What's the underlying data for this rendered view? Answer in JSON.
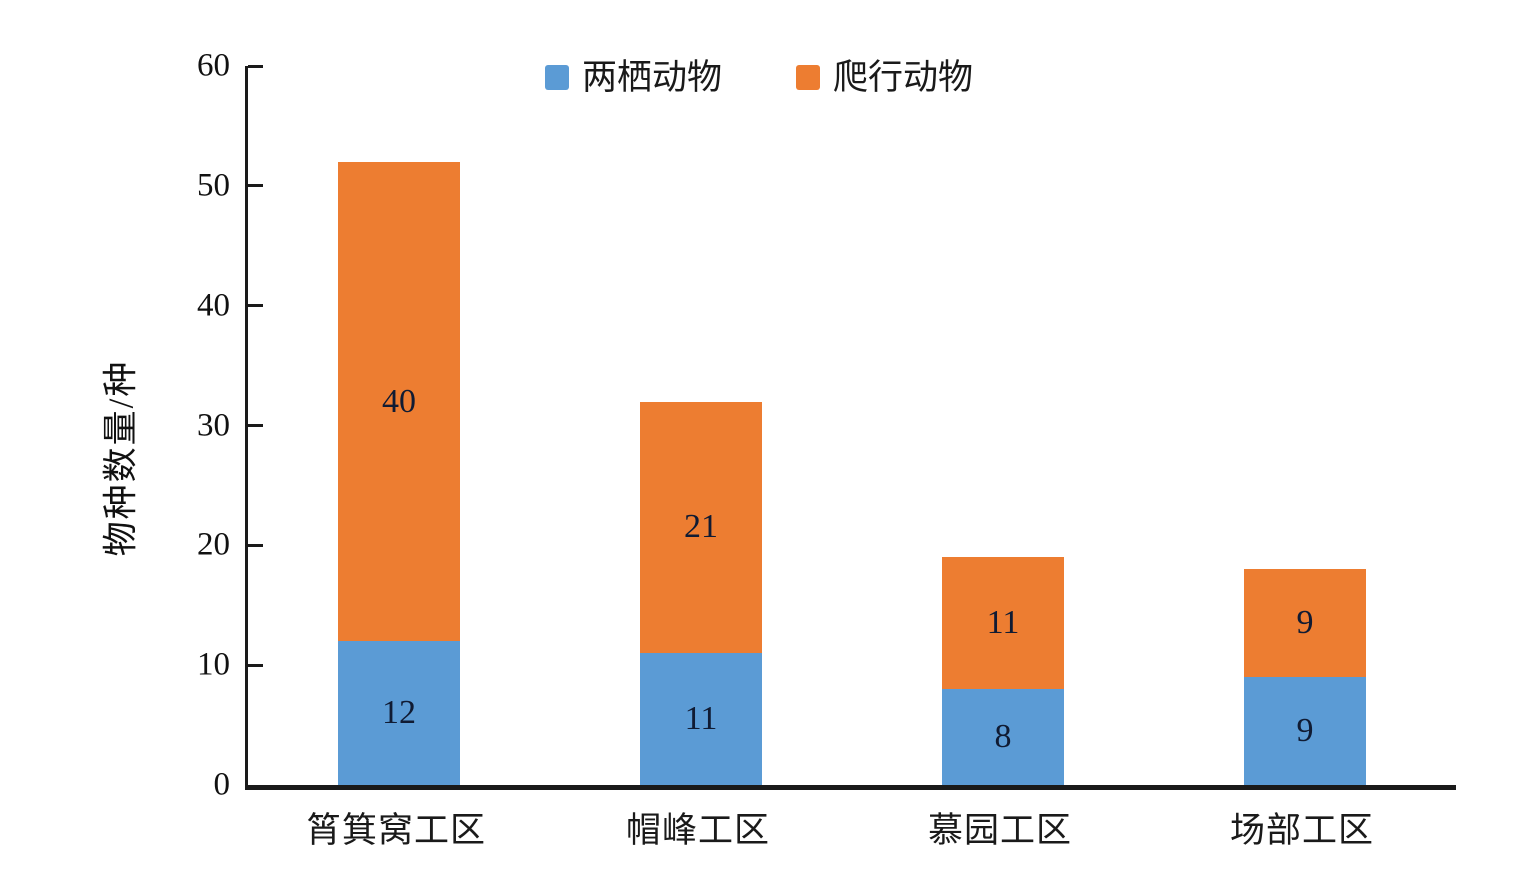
{
  "chart_data": {
    "type": "bar",
    "stacked": true,
    "title": "",
    "categories": [
      "筲箕窝工区",
      "帽峰工区",
      "慕园工区",
      "场部工区"
    ],
    "series": [
      {
        "name": "两栖动物",
        "color": "#5B9BD5",
        "values": [
          12,
          11,
          8,
          9
        ]
      },
      {
        "name": "爬行动物",
        "color": "#ED7D31",
        "values": [
          40,
          21,
          11,
          9
        ]
      }
    ],
    "xlabel": "",
    "ylabel": "物种数量/种",
    "ylim": [
      0,
      60
    ],
    "yticks": [
      0,
      10,
      20,
      30,
      40,
      50,
      60
    ],
    "grid": false,
    "legend_position": "top-center",
    "data_labels": true,
    "colors": {
      "axis": "#1a1a1a",
      "tick_label": "#111111",
      "data_label": "#101b33",
      "background": "#ffffff"
    }
  }
}
